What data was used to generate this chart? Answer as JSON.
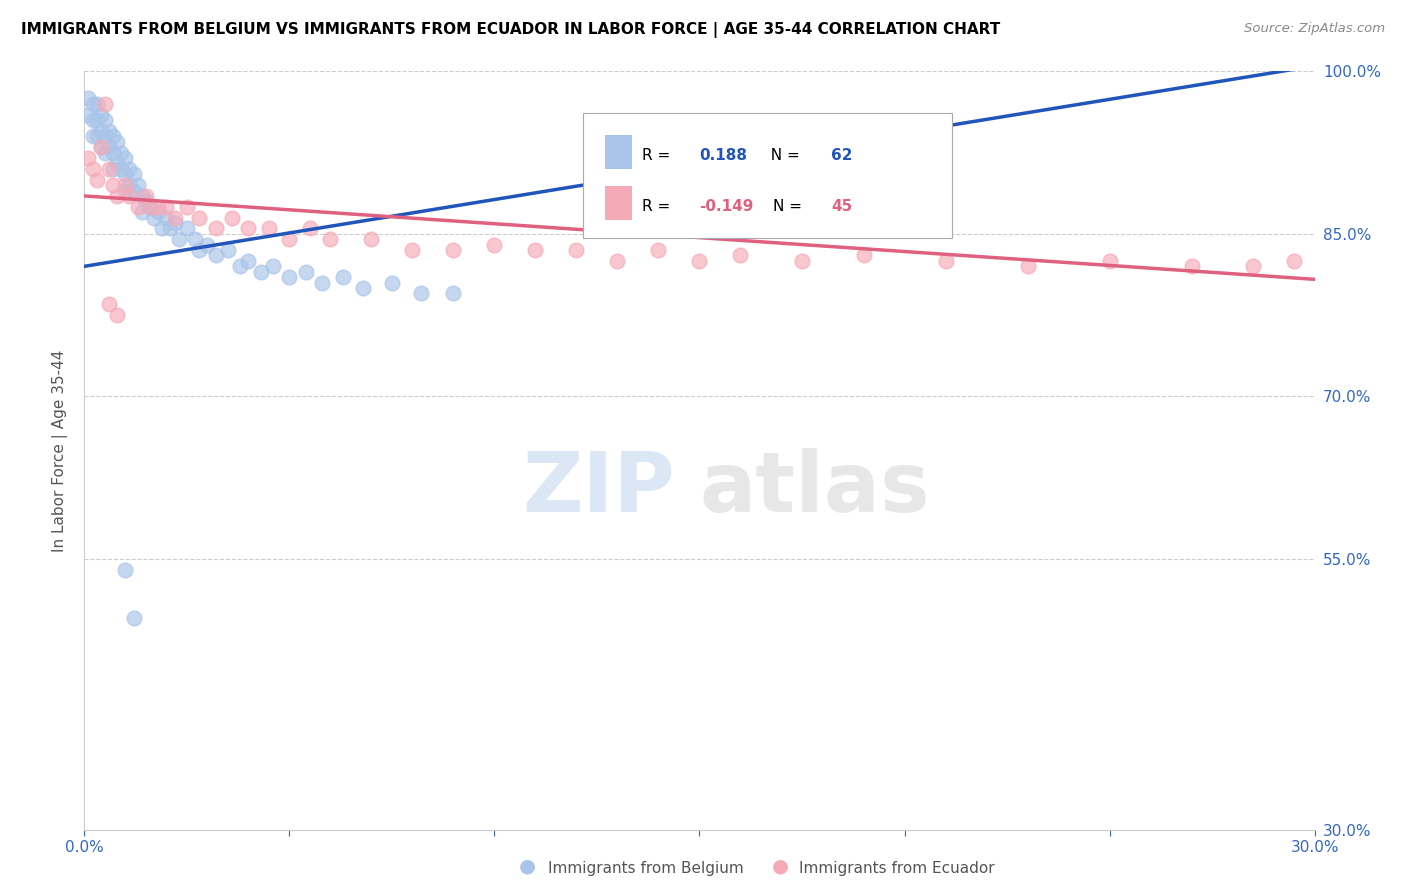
{
  "title": "IMMIGRANTS FROM BELGIUM VS IMMIGRANTS FROM ECUADOR IN LABOR FORCE | AGE 35-44 CORRELATION CHART",
  "source": "Source: ZipAtlas.com",
  "ylabel": "In Labor Force | Age 35-44",
  "xlim": [
    0.0,
    0.3
  ],
  "ylim": [
    0.3,
    1.0
  ],
  "legend_R_belgium": "0.188",
  "legend_N_belgium": "62",
  "legend_R_ecuador": "-0.149",
  "legend_N_ecuador": "45",
  "belgium_color": "#a8c4e8",
  "ecuador_color": "#f5aab8",
  "trendline_belgium_color": "#2255bb",
  "trendline_ecuador_color": "#e06080",
  "grid_color": "#cccccc",
  "belgium_x": [
    0.001,
    0.001,
    0.002,
    0.002,
    0.002,
    0.003,
    0.003,
    0.003,
    0.004,
    0.004,
    0.004,
    0.005,
    0.005,
    0.005,
    0.006,
    0.006,
    0.007,
    0.007,
    0.007,
    0.008,
    0.008,
    0.009,
    0.009,
    0.01,
    0.01,
    0.01,
    0.011,
    0.011,
    0.012,
    0.012,
    0.013,
    0.014,
    0.014,
    0.015,
    0.016,
    0.017,
    0.018,
    0.019,
    0.02,
    0.021,
    0.022,
    0.023,
    0.025,
    0.027,
    0.028,
    0.03,
    0.032,
    0.035,
    0.038,
    0.04,
    0.043,
    0.046,
    0.05,
    0.054,
    0.058,
    0.063,
    0.068,
    0.075,
    0.082,
    0.09,
    0.01,
    0.012
  ],
  "belgium_y": [
    0.975,
    0.96,
    0.97,
    0.955,
    0.94,
    0.97,
    0.955,
    0.94,
    0.96,
    0.945,
    0.93,
    0.955,
    0.94,
    0.925,
    0.945,
    0.93,
    0.94,
    0.925,
    0.91,
    0.935,
    0.915,
    0.925,
    0.91,
    0.92,
    0.905,
    0.89,
    0.91,
    0.895,
    0.905,
    0.89,
    0.895,
    0.885,
    0.87,
    0.88,
    0.875,
    0.865,
    0.87,
    0.855,
    0.865,
    0.855,
    0.86,
    0.845,
    0.855,
    0.845,
    0.835,
    0.84,
    0.83,
    0.835,
    0.82,
    0.825,
    0.815,
    0.82,
    0.81,
    0.815,
    0.805,
    0.81,
    0.8,
    0.805,
    0.795,
    0.795,
    0.54,
    0.495
  ],
  "ecuador_x": [
    0.001,
    0.002,
    0.003,
    0.004,
    0.005,
    0.006,
    0.007,
    0.008,
    0.01,
    0.011,
    0.013,
    0.015,
    0.016,
    0.018,
    0.02,
    0.022,
    0.025,
    0.028,
    0.032,
    0.036,
    0.04,
    0.045,
    0.05,
    0.055,
    0.06,
    0.07,
    0.08,
    0.09,
    0.1,
    0.11,
    0.12,
    0.13,
    0.14,
    0.15,
    0.16,
    0.175,
    0.19,
    0.21,
    0.23,
    0.25,
    0.27,
    0.285,
    0.295,
    0.006,
    0.008
  ],
  "ecuador_y": [
    0.92,
    0.91,
    0.9,
    0.93,
    0.97,
    0.91,
    0.895,
    0.885,
    0.895,
    0.885,
    0.875,
    0.885,
    0.875,
    0.875,
    0.875,
    0.865,
    0.875,
    0.865,
    0.855,
    0.865,
    0.855,
    0.855,
    0.845,
    0.855,
    0.845,
    0.845,
    0.835,
    0.835,
    0.84,
    0.835,
    0.835,
    0.825,
    0.835,
    0.825,
    0.83,
    0.825,
    0.83,
    0.825,
    0.82,
    0.825,
    0.82,
    0.82,
    0.825,
    0.785,
    0.775
  ],
  "trendline_bel_x0": 0.0,
  "trendline_bel_y0": 0.82,
  "trendline_bel_x1": 0.3,
  "trendline_bel_y1": 1.005,
  "trendline_ecu_x0": 0.0,
  "trendline_ecu_y0": 0.885,
  "trendline_ecu_x1": 0.3,
  "trendline_ecu_y1": 0.808
}
